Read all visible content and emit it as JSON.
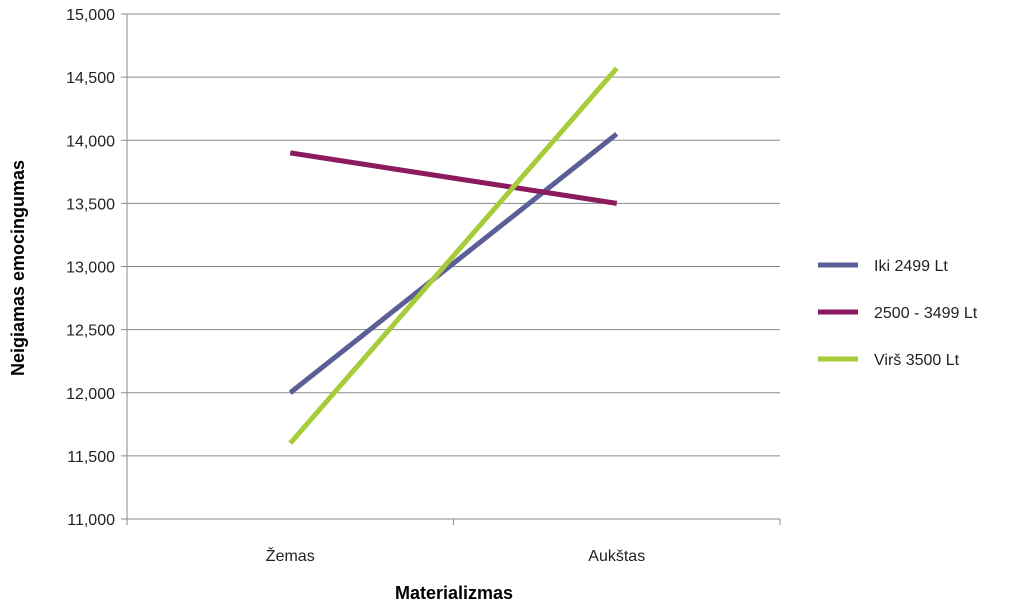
{
  "chart_data": {
    "type": "line",
    "title": "",
    "xlabel": "Materializmas",
    "ylabel": "Neigiamas emocingumas",
    "categories": [
      "Žemas",
      "Aukštas"
    ],
    "ylim": [
      11000,
      15000
    ],
    "yticks": [
      11000,
      11500,
      12000,
      12500,
      13000,
      13500,
      14000,
      14500,
      15000
    ],
    "ytick_labels": [
      "11,000",
      "11,500",
      "12,000",
      "12,500",
      "13,000",
      "13,500",
      "14,000",
      "14,500",
      "15,000"
    ],
    "grid": true,
    "legend_position": "right",
    "series": [
      {
        "name": "Iki 2499 Lt",
        "values": [
          12000,
          14050
        ],
        "color": "#5b5f97"
      },
      {
        "name": "2500 - 3499 Lt",
        "values": [
          13900,
          13500
        ],
        "color": "#8b1a5e"
      },
      {
        "name": "Virš 3500 Lt",
        "values": [
          11600,
          14570
        ],
        "color": "#a7cc3a"
      }
    ]
  }
}
